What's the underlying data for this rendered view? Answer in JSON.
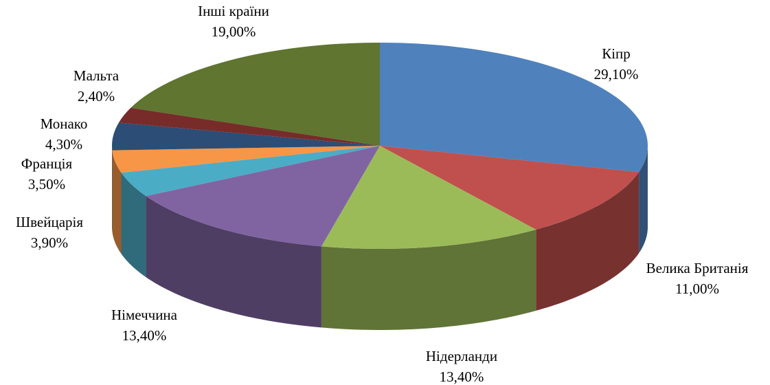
{
  "chart_data": {
    "type": "pie3d",
    "categories": [
      "Кіпр",
      "Велика Британія",
      "Нідерланди",
      "Німеччина",
      "Швейцарія",
      "Франція",
      "Монако",
      "Мальта",
      "Інші країни"
    ],
    "values": [
      29.1,
      11.0,
      13.4,
      13.4,
      3.9,
      3.5,
      4.3,
      2.4,
      19.0
    ],
    "value_labels": [
      "29,10%",
      "11,00%",
      "13,40%",
      "13,40%",
      "3,90%",
      "3,50%",
      "4,30%",
      "2,40%",
      "19,00%"
    ],
    "colors": [
      "#4f81bd",
      "#c0504d",
      "#9bbb59",
      "#8064a2",
      "#4bacc6",
      "#f79646",
      "#2c4d75",
      "#772c2a",
      "#5f7530"
    ]
  }
}
